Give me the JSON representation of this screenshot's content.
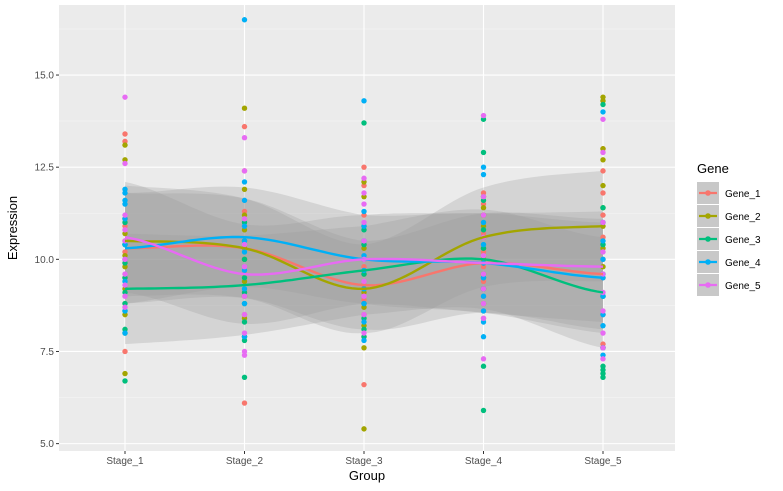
{
  "chart_data": {
    "type": "scatter",
    "xlabel": "Group",
    "ylabel": "Expression",
    "categories": [
      "Stage_1",
      "Stage_2",
      "Stage_3",
      "Stage_4",
      "Stage_5"
    ],
    "ylim": [
      4.8,
      16.9
    ],
    "yticks": [
      5.0,
      7.5,
      10.0,
      12.5,
      15.0
    ],
    "ytick_labels": [
      "5.0",
      "7.5",
      "10.0",
      "12.5",
      "15.0"
    ],
    "grid": true,
    "legend": {
      "title": "Gene",
      "position": "right"
    },
    "smoothing": "loess with confidence band",
    "series": [
      {
        "name": "Gene_1",
        "color": "#F8766D",
        "points": {
          "Stage_1": [
            13.4,
            13.2,
            11.1,
            10.9,
            10.5,
            10.2,
            9.9,
            9.5,
            8.8,
            7.5
          ],
          "Stage_2": [
            13.6,
            12.4,
            11.3,
            10.9,
            10.5,
            10.0,
            9.6,
            9.1,
            8.5,
            6.1
          ],
          "Stage_3": [
            12.5,
            12.0,
            11.2,
            10.4,
            9.8,
            9.3,
            8.9,
            8.5,
            7.9,
            6.6
          ],
          "Stage_4": [
            11.8,
            11.5,
            11.0,
            10.7,
            10.2,
            9.8,
            9.4,
            9.0,
            8.6,
            8.4
          ],
          "Stage_5": [
            13.0,
            12.4,
            11.8,
            11.2,
            10.6,
            10.0,
            9.5,
            9.0,
            8.5,
            7.7
          ]
        },
        "smooth": [
          10.3,
          10.3,
          9.3,
          9.9,
          9.6
        ]
      },
      {
        "name": "Gene_2",
        "color": "#A3A500",
        "points": {
          "Stage_1": [
            13.1,
            12.7,
            11.1,
            10.7,
            10.4,
            10.1,
            9.8,
            9.2,
            8.5,
            6.9
          ],
          "Stage_2": [
            14.1,
            11.9,
            11.2,
            10.8,
            10.3,
            10.0,
            9.4,
            9.0,
            8.4,
            7.9
          ],
          "Stage_3": [
            12.1,
            11.7,
            10.9,
            10.3,
            9.6,
            9.1,
            8.7,
            8.2,
            7.6,
            5.4
          ],
          "Stage_4": [
            11.7,
            11.4,
            11.2,
            10.9,
            10.6,
            10.3,
            10.0,
            9.6,
            9.2,
            8.8
          ],
          "Stage_5": [
            14.4,
            14.3,
            13.0,
            12.7,
            12.0,
            11.4,
            10.9,
            10.3,
            9.8,
            7.6
          ]
        },
        "smooth": [
          10.5,
          10.3,
          9.2,
          10.6,
          10.9
        ]
      },
      {
        "name": "Gene_3",
        "color": "#00BF7D",
        "points": {
          "Stage_1": [
            11.0,
            10.4,
            9.9,
            9.5,
            9.1,
            8.8,
            8.6,
            8.1,
            8.0,
            6.7
          ],
          "Stage_2": [
            11.0,
            10.5,
            10.0,
            9.5,
            9.1,
            8.8,
            8.3,
            7.9,
            7.8,
            6.8
          ],
          "Stage_3": [
            13.7,
            10.8,
            10.4,
            10.0,
            9.6,
            9.2,
            8.8,
            8.4,
            8.1,
            7.9
          ],
          "Stage_4": [
            13.8,
            12.9,
            11.6,
            10.8,
            10.3,
            9.9,
            9.5,
            9.2,
            7.1,
            5.9
          ],
          "Stage_5": [
            14.2,
            11.4,
            10.4,
            9.6,
            9.0,
            7.6,
            7.1,
            7.0,
            6.9,
            6.8
          ]
        },
        "smooth": [
          9.2,
          9.3,
          9.7,
          10.0,
          9.1
        ]
      },
      {
        "name": "Gene_4",
        "color": "#00B0F6",
        "points": {
          "Stage_1": [
            11.9,
            11.8,
            11.6,
            11.5,
            11.1,
            10.4,
            10.0,
            9.4,
            8.6,
            8.0
          ],
          "Stage_2": [
            16.5,
            12.1,
            11.6,
            10.9,
            10.5,
            10.2,
            9.7,
            9.2,
            8.8,
            7.9
          ],
          "Stage_3": [
            14.3,
            11.3,
            10.9,
            10.5,
            10.1,
            9.7,
            9.2,
            8.8,
            8.3,
            7.8
          ],
          "Stage_4": [
            12.5,
            12.3,
            11.0,
            10.4,
            9.9,
            9.5,
            9.0,
            8.6,
            8.3,
            7.9
          ],
          "Stage_5": [
            14.0,
            11.0,
            10.5,
            10.0,
            9.5,
            9.0,
            8.5,
            8.2,
            7.6,
            7.4
          ]
        },
        "smooth": [
          10.3,
          10.6,
          10.0,
          9.9,
          9.5
        ]
      },
      {
        "name": "Gene_5",
        "color": "#E76BF3",
        "points": {
          "Stage_1": [
            14.4,
            12.6,
            11.2,
            10.8,
            10.5,
            10.0,
            9.6,
            9.3,
            9.0,
            8.7
          ],
          "Stage_2": [
            13.3,
            12.4,
            11.1,
            10.4,
            9.8,
            9.0,
            8.5,
            8.0,
            7.5,
            7.4
          ],
          "Stage_3": [
            12.2,
            11.8,
            11.5,
            11.0,
            10.5,
            10.0,
            9.4,
            9.0,
            8.5,
            8.0
          ],
          "Stage_4": [
            13.9,
            11.7,
            11.2,
            10.6,
            10.1,
            9.6,
            9.2,
            8.8,
            8.4,
            7.3
          ],
          "Stage_5": [
            13.8,
            12.9,
            11.0,
            10.2,
            9.6,
            9.1,
            8.6,
            8.0,
            7.6,
            7.3
          ]
        },
        "smooth": [
          10.6,
          9.6,
          10.0,
          9.9,
          9.8
        ]
      }
    ]
  }
}
